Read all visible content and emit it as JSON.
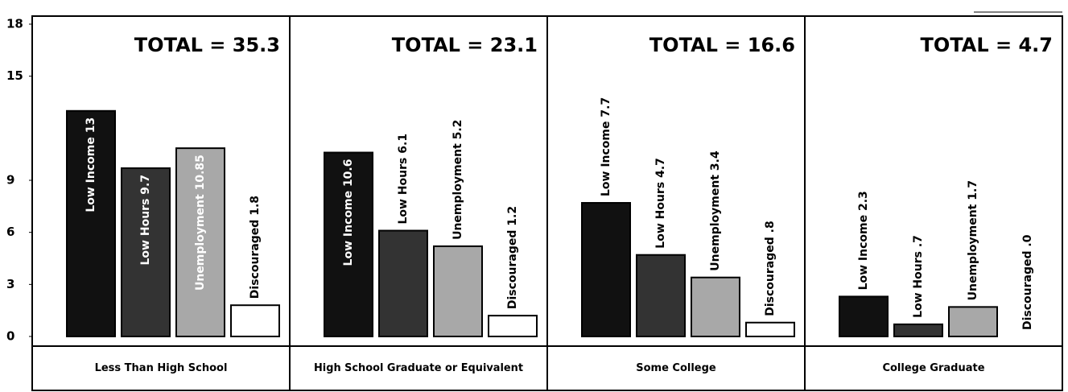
{
  "chart_data": {
    "type": "bar",
    "categories": [
      "Less Than High School",
      "High School Graduate or Equivalent",
      "Some College",
      "College Graduate"
    ],
    "total_label": "TOTAL =",
    "totals": [
      35.3,
      23.1,
      16.6,
      4.7
    ],
    "series": [
      {
        "name": "Low Income",
        "color": "#111111",
        "values": [
          13,
          10.6,
          7.7,
          2.3
        ]
      },
      {
        "name": "Low Hours",
        "color": "#333333",
        "values": [
          9.7,
          6.1,
          4.7,
          0.7
        ],
        "value_labels": [
          "9.7",
          "6.1",
          "4.7",
          ".7"
        ]
      },
      {
        "name": "Unemployment",
        "color": "#a8a8a8",
        "values": [
          10.85,
          5.2,
          3.4,
          1.7
        ]
      },
      {
        "name": "Discouraged",
        "color": "#ffffff",
        "values": [
          1.8,
          1.2,
          0.8,
          0
        ],
        "value_labels": [
          "1.8",
          "1.2",
          ".8",
          ".0"
        ]
      }
    ],
    "ylim": [
      0,
      18
    ],
    "yticks": [
      0,
      3,
      6,
      9,
      15,
      18
    ]
  }
}
